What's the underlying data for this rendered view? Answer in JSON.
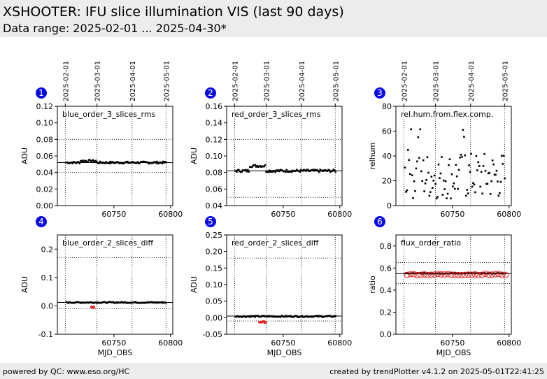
{
  "header": {
    "title": "XSHOOTER: IFU slice illumination VIS (last 90 days)",
    "subtitle": "Data range: 2025-02-01 ... 2025-04-30*"
  },
  "footer": {
    "left": "powered by QC: www.eso.org/HC",
    "right": "created by trendPlotter v4.1.2 on 2025-05-01T22:41:25"
  },
  "colors": {
    "data": "#000000",
    "flagged": "#e82020",
    "badge": "#0a0ae8",
    "ref_line": "#000000",
    "grid": "#000000"
  },
  "top_axis": {
    "labels": [
      "2025-02-01",
      "2025-03-01",
      "2025-04-01",
      "2025-05-01"
    ],
    "mjd": [
      60707,
      60735,
      60766,
      60796
    ]
  },
  "chart_data": [
    {
      "id": 1,
      "type": "scatter",
      "label": "blue_order_3_slices_rms",
      "ylabel": "ADU",
      "xlabel": "",
      "ylim": [
        0,
        0.12
      ],
      "yticks": [
        "0.00",
        "0.02",
        "0.04",
        "0.06",
        "0.08",
        "0.10",
        "0.12"
      ],
      "xticks": [
        "60750",
        "60800"
      ],
      "ref": 0.052,
      "hlines": [
        0.04,
        0.08
      ],
      "level": 0.052,
      "amp": 0.0025,
      "bump": 0.002,
      "flag": null
    },
    {
      "id": 2,
      "type": "scatter",
      "label": "red_order_3_slices_rms",
      "ylabel": "ADU",
      "xlabel": "",
      "ylim": [
        0.04,
        0.16
      ],
      "yticks": [
        "0.04",
        "0.06",
        "0.08",
        "0.10",
        "0.12",
        "0.14",
        "0.16"
      ],
      "xticks": [
        "60750",
        "60800"
      ],
      "ref": 0.082,
      "hlines": [
        0.05,
        0.12
      ],
      "level": 0.082,
      "amp": 0.003,
      "bump": 0.006,
      "flag": null
    },
    {
      "id": 3,
      "type": "scatter",
      "label": "rel.hum.from.flex.comp.",
      "ylabel": "relhum",
      "xlabel": "",
      "ylim": [
        0,
        80
      ],
      "yticks": [
        "0",
        "20",
        "40",
        "60",
        "80"
      ],
      "xticks": [
        "60750",
        "60800"
      ],
      "ref": null,
      "hlines": [],
      "level": 20,
      "amp": 16,
      "bump": 0,
      "flag": null
    },
    {
      "id": 4,
      "type": "scatter",
      "label": "blue_order_2_slices_diff",
      "ylabel": "ADU",
      "xlabel": "MJD_OBS",
      "ylim": [
        -0.1,
        0.25
      ],
      "yticks": [
        "-0.1",
        "0.0",
        "0.1",
        "0.2"
      ],
      "xticks": [
        "60750",
        "60800"
      ],
      "ref": 0.012,
      "hlines": [
        -0.01,
        0.17
      ],
      "level": 0.012,
      "amp": 0.004,
      "bump": 0,
      "flag": [
        60730,
        60733,
        -0.005
      ]
    },
    {
      "id": 5,
      "type": "scatter",
      "label": "red_order_2_slices_diff",
      "ylabel": "ADU",
      "xlabel": "MJD_OBS",
      "ylim": [
        -0.05,
        0.25
      ],
      "yticks": [
        "-0.05",
        "0.00",
        "0.05",
        "0.10",
        "0.15",
        "0.20",
        "0.25"
      ],
      "xticks": [
        "60750",
        "60800"
      ],
      "ref": 0.005,
      "hlines": [
        -0.01,
        0.18
      ],
      "level": 0.004,
      "amp": 0.004,
      "bump": 0,
      "flag": [
        60729,
        60735,
        -0.013
      ]
    },
    {
      "id": 6,
      "type": "scatter",
      "label": "flux_order_ratio",
      "ylabel": "ratio",
      "xlabel": "MJD_OBS",
      "ylim": [
        0,
        0.9
      ],
      "yticks": [
        "0.0",
        "0.2",
        "0.4",
        "0.6",
        "0.8"
      ],
      "xticks": [
        "60750",
        "60800"
      ],
      "ref": 0.55,
      "hlines": [
        0.46,
        0.65
      ],
      "level": 0.552,
      "amp": 0.006,
      "bump": 0,
      "flag": "circles"
    }
  ]
}
